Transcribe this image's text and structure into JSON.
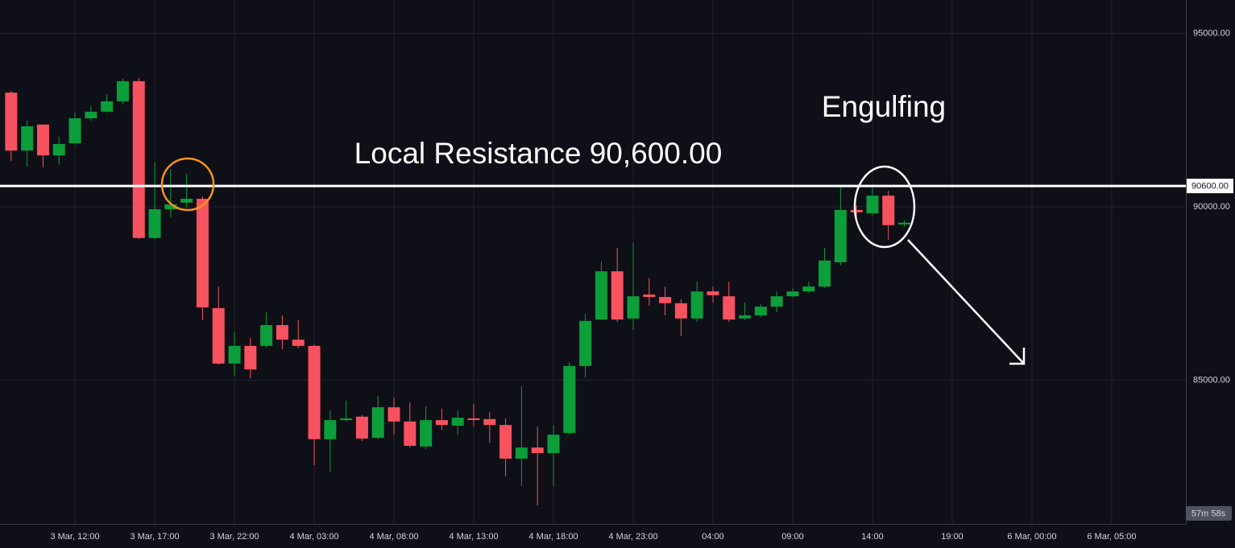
{
  "chart_data": {
    "type": "candlestick",
    "x": [
      8,
      9,
      10,
      11,
      12,
      13,
      14,
      15,
      16,
      17,
      18,
      19,
      20,
      21,
      22,
      23,
      24,
      25,
      26,
      27,
      28,
      29,
      30,
      31,
      32,
      33,
      34,
      35,
      36,
      37,
      38,
      39,
      40,
      41,
      42,
      43,
      44,
      45,
      46,
      47,
      48,
      49,
      50,
      51,
      52,
      53,
      54,
      55,
      56,
      57,
      58,
      59,
      60,
      61,
      62,
      63,
      64
    ],
    "open": [
      93290,
      91620,
      92370,
      91480,
      91830,
      92550,
      92740,
      93040,
      93620,
      89100,
      89930,
      90120,
      90230,
      87080,
      85480,
      85990,
      85990,
      86590,
      86170,
      85990,
      83300,
      83850,
      83950,
      83340,
      84220,
      83810,
      83090,
      83850,
      83690,
      83900,
      83880,
      83710,
      82740,
      83060,
      82900,
      83480,
      85410,
      86750,
      88140,
      86780,
      87470,
      87400,
      87220,
      86780,
      87560,
      87420,
      86780,
      86870,
      87120,
      87420,
      87560,
      87700,
      88400,
      89910,
      89810,
      90320,
      89490
    ],
    "high": [
      93340,
      92480,
      92370,
      92020,
      92710,
      92900,
      93250,
      93690,
      93710,
      91280,
      91090,
      90950,
      90300,
      87700,
      86380,
      86220,
      86960,
      86870,
      86730,
      86030,
      84130,
      84410,
      83990,
      84550,
      84500,
      84360,
      84250,
      84180,
      84130,
      84320,
      84080,
      83900,
      84830,
      83670,
      83710,
      85520,
      86910,
      88420,
      88820,
      88960,
      87940,
      87700,
      87330,
      87840,
      87700,
      87840,
      87240,
      87190,
      87560,
      87660,
      87840,
      88820,
      90560,
      90050,
      90560,
      90460,
      89610
    ],
    "low": [
      91320,
      91160,
      91140,
      91210,
      91790,
      92480,
      92710,
      92950,
      89070,
      89070,
      89700,
      89980,
      86730,
      85450,
      85130,
      85060,
      85940,
      85890,
      85920,
      82550,
      82370,
      83810,
      83250,
      83300,
      83430,
      83060,
      83020,
      83570,
      83430,
      83670,
      83200,
      82230,
      81950,
      81390,
      81950,
      83430,
      85080,
      86730,
      86680,
      86450,
      87150,
      86870,
      86270,
      86680,
      87240,
      86680,
      86730,
      86820,
      86960,
      87380,
      87520,
      87660,
      88310,
      89700,
      89750,
      89050,
      89420
    ],
    "close": [
      91620,
      92320,
      91480,
      91810,
      92550,
      92740,
      93040,
      93620,
      89100,
      89930,
      90070,
      90230,
      87100,
      85480,
      85990,
      85310,
      86590,
      86170,
      85990,
      83300,
      83850,
      83900,
      83320,
      84220,
      83810,
      83110,
      83850,
      83710,
      83920,
      83880,
      83710,
      82740,
      83060,
      82900,
      83430,
      85410,
      86710,
      88140,
      86750,
      87420,
      87400,
      87220,
      86780,
      87560,
      87450,
      86750,
      86870,
      87120,
      87420,
      87560,
      87700,
      88450,
      89910,
      89840,
      90320,
      89470,
      89540
    ],
    "up_color": "#0b9e3a",
    "down_color": "#f7525f",
    "xlim": [
      7.3,
      81.65
    ],
    "ylim": [
      80860,
      95960
    ],
    "xticks": [
      {
        "value": 12,
        "label": "3 Mar, 12:00"
      },
      {
        "value": 17,
        "label": "3 Mar, 17:00"
      },
      {
        "value": 22,
        "label": "3 Mar, 22:00"
      },
      {
        "value": 27,
        "label": "4 Mar, 03:00"
      },
      {
        "value": 32,
        "label": "4 Mar, 08:00"
      },
      {
        "value": 37,
        "label": "4 Mar, 13:00"
      },
      {
        "value": 42,
        "label": "4 Mar, 18:00"
      },
      {
        "value": 47,
        "label": "4 Mar, 23:00"
      },
      {
        "value": 52,
        "label": "04:00"
      },
      {
        "value": 57,
        "label": "09:00"
      },
      {
        "value": 62,
        "label": "14:00"
      },
      {
        "value": 67,
        "label": "19:00"
      },
      {
        "value": 72,
        "label": "6 Mar, 00:00"
      },
      {
        "value": 77,
        "label": "6 Mar, 05:00"
      }
    ],
    "yticks": [
      {
        "value": 85000,
        "label": "85000.00"
      },
      {
        "value": 90000,
        "label": "90000.00"
      },
      {
        "value": 95000,
        "label": "95000.00"
      }
    ],
    "grid": true,
    "resistance": {
      "value": 90600,
      "label": "90600.00",
      "color": "#ffffff"
    },
    "annotations": [
      "Local Resistance 90,600.00",
      "Engulfing"
    ],
    "countdown": "57m 58s"
  }
}
